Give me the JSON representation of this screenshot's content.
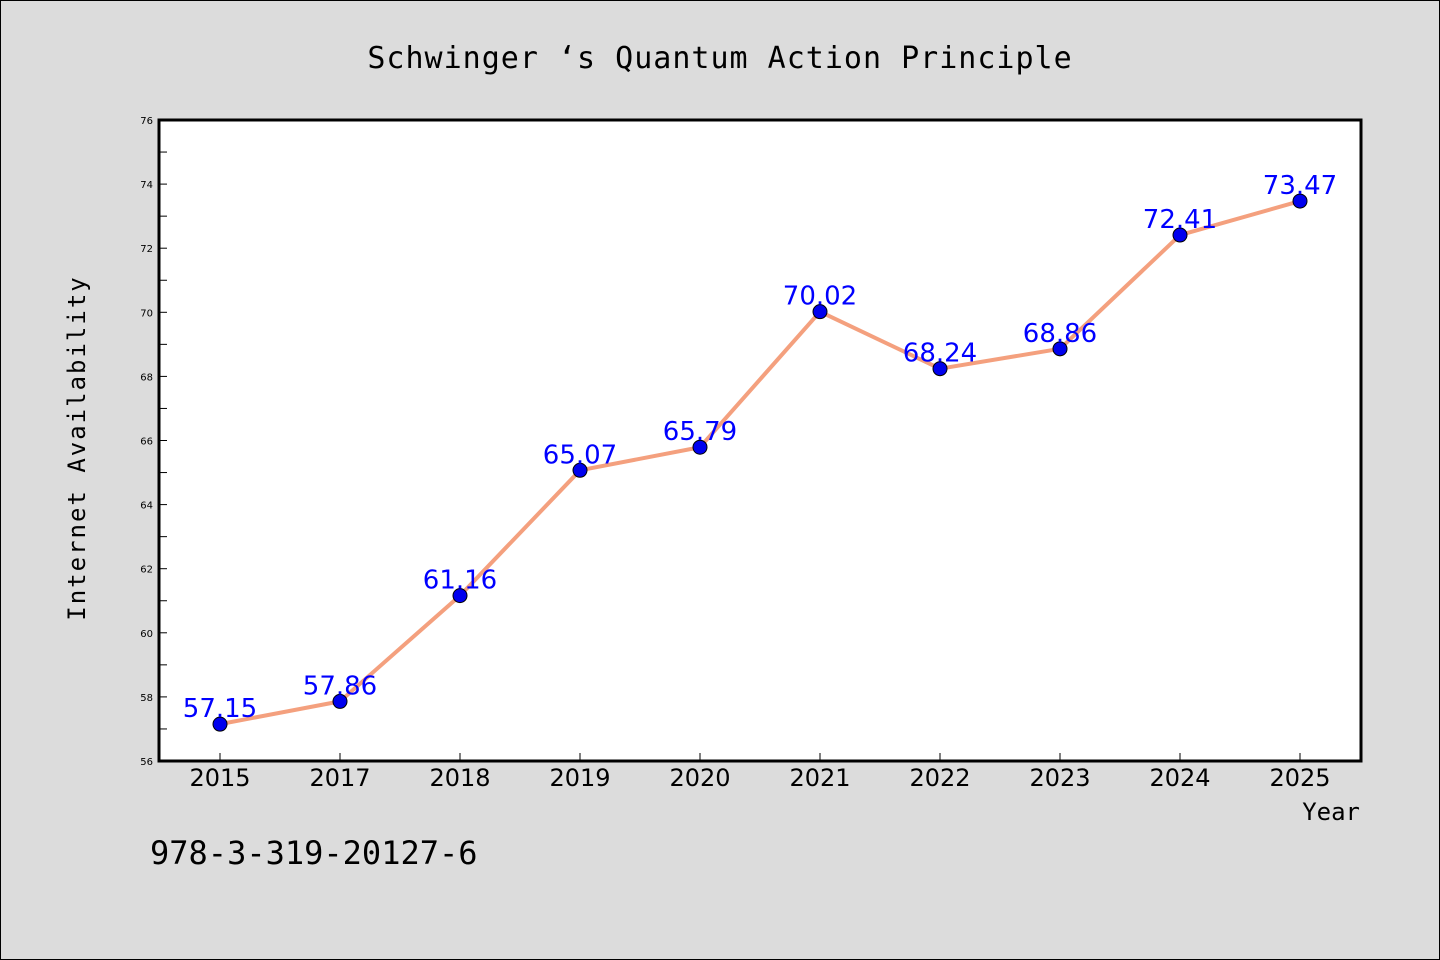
{
  "chart_data": {
    "type": "line",
    "title": "Schwinger ‘s Quantum Action Principle",
    "xlabel": "Year",
    "ylabel": "Internet Availability",
    "categories": [
      "2015",
      "2017",
      "2018",
      "2019",
      "2020",
      "2021",
      "2022",
      "2023",
      "2024",
      "2025"
    ],
    "values": [
      57.15,
      57.86,
      61.16,
      65.07,
      65.79,
      70.02,
      68.24,
      68.86,
      72.41,
      73.47
    ],
    "data_labels": [
      "57.15",
      "57.86",
      "61.16",
      "65.07",
      "65.79",
      "70.02",
      "68.24",
      "68.86",
      "72.41",
      "73.47"
    ],
    "ylim": [
      56,
      76
    ],
    "yticks": [
      "56",
      "58",
      "60",
      "62",
      "64",
      "66",
      "68",
      "70",
      "72",
      "74",
      "76"
    ],
    "grid": false,
    "line_color": "#f4a07e",
    "marker_color": "#0000ee",
    "label_color": "#0000ff",
    "plot_background": "#ffffff",
    "page_background": "#dcdcdc"
  },
  "footer": {
    "isbn": "978-3-319-20127-6"
  }
}
